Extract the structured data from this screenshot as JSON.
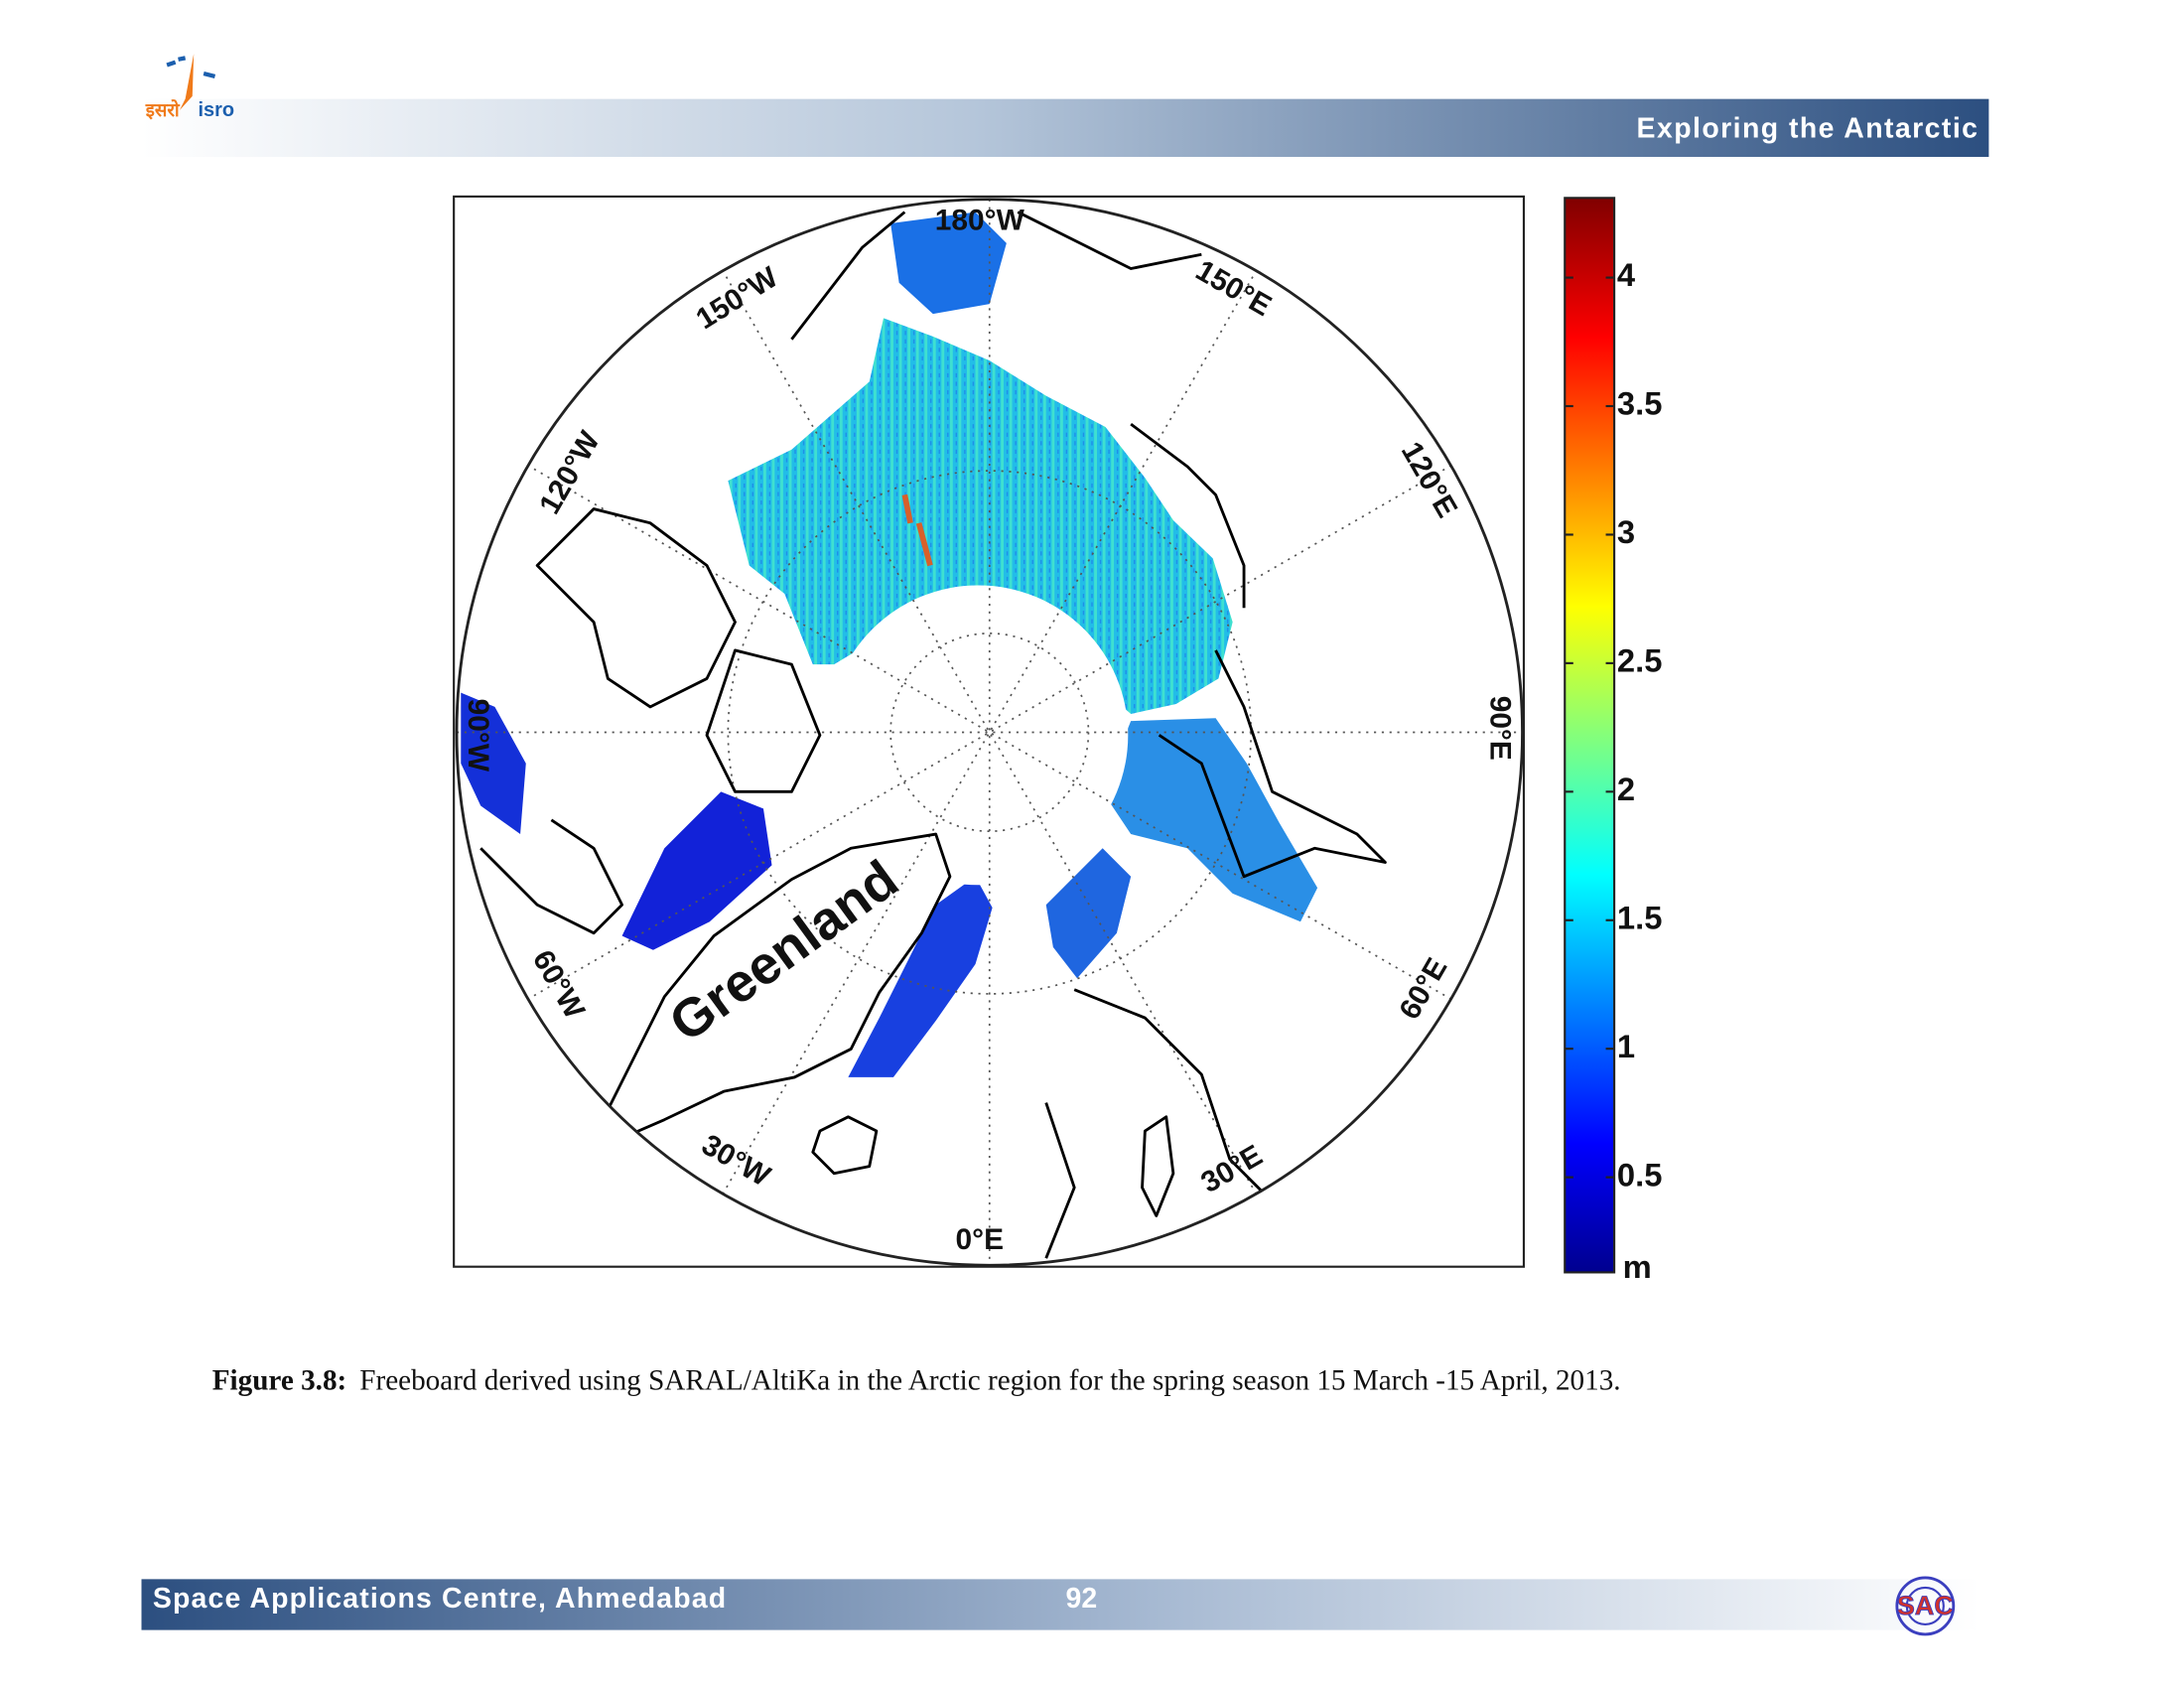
{
  "header": {
    "logo_hindi": "इसरो",
    "logo_text": "isro",
    "title": "Exploring the Antarctic"
  },
  "figure": {
    "meridian_labels": [
      "180°W",
      "150°W",
      "120°W",
      "90°W",
      "60°W",
      "30°W",
      "0°E",
      "30°E",
      "60°E",
      "90°E",
      "120°E",
      "150°E"
    ],
    "region_label": "Greenland",
    "colorbar": {
      "unit": "m",
      "range": [
        0.13,
        4.31
      ],
      "ticks": [
        0.5,
        1,
        1.5,
        2,
        2.5,
        3,
        3.5,
        4
      ]
    }
  },
  "caption": {
    "label": "Figure 3.8:",
    "text": "Freeboard derived using SARAL/AltiKa in the Arctic region for the spring season 15 March -15 April, 2013."
  },
  "footer": {
    "organization": "Space Applications Centre, Ahmedabad",
    "page": "92",
    "logo_text": "SAC"
  }
}
